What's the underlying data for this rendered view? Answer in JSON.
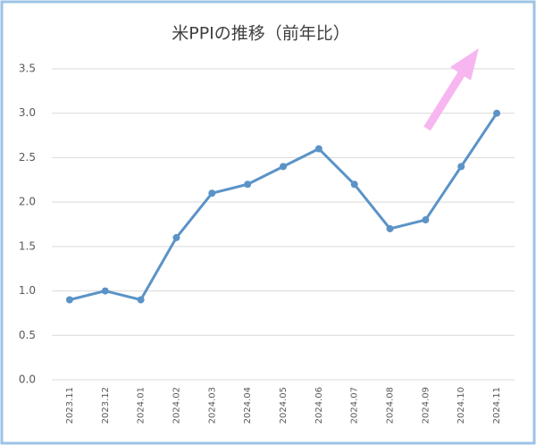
{
  "chart_data": {
    "type": "line",
    "title": "米PPIの推移（前年比）",
    "categories": [
      "2023.11",
      "2023.12",
      "2024.01",
      "2024.02",
      "2024.03",
      "2024.04",
      "2024.05",
      "2024.06",
      "2024.07",
      "2024.08",
      "2024.09",
      "2024.10",
      "2024.11"
    ],
    "series": [
      {
        "color": "#5b93c7",
        "values": [
          0.9,
          1.0,
          0.9,
          1.6,
          2.1,
          2.2,
          2.4,
          2.6,
          2.2,
          1.7,
          1.8,
          2.4,
          3.0
        ]
      }
    ],
    "ylim": [
      0,
      3.5
    ],
    "yticks": [
      {
        "value": 0,
        "label": "0.0"
      },
      {
        "value": 0.5,
        "label": "0.5"
      },
      {
        "value": 1,
        "label": "1.0"
      },
      {
        "value": 1.5,
        "label": "1.5"
      },
      {
        "value": 2,
        "label": "2.0"
      },
      {
        "value": 2.5,
        "label": "2.5"
      },
      {
        "value": 3,
        "label": "3.0"
      },
      {
        "value": 3.5,
        "label": "3.5"
      }
    ],
    "grid": true
  }
}
